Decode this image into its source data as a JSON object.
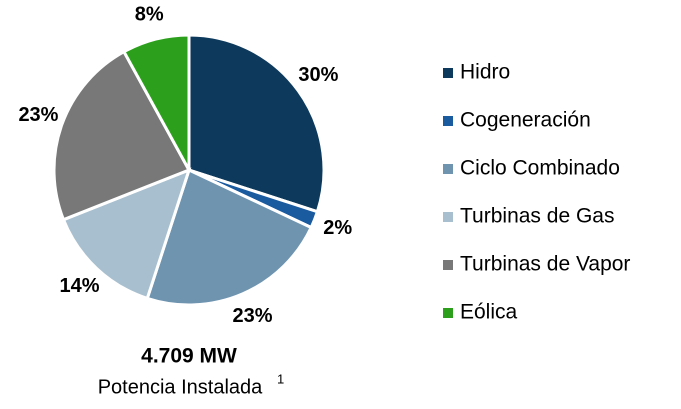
{
  "chart_data": {
    "type": "pie",
    "categories": [
      "Hidro",
      "Cogeneración",
      "Ciclo Combinado",
      "Turbinas de Gas",
      "Turbinas de Vapor",
      "Eólica"
    ],
    "values": [
      30,
      2,
      23,
      14,
      23,
      8
    ],
    "value_labels": [
      "30%",
      "2%",
      "23%",
      "14%",
      "23%",
      "8%"
    ],
    "colors": [
      "#0d3a5c",
      "#1a5a9e",
      "#6e94b0",
      "#a8bfcf",
      "#787878",
      "#2ca01c"
    ],
    "legend": "right",
    "total": "4.709 MW",
    "caption": "Potencia Instalada",
    "footnote_mark": "1"
  }
}
